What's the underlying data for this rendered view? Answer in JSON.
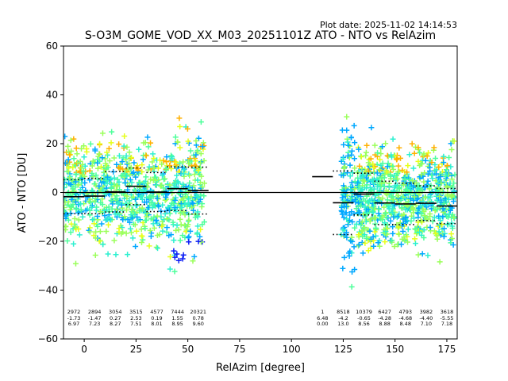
{
  "header": {
    "plot_date": "Plot date: 2025-11-02 14:14:53",
    "title": "S-O3M_GOME_VOD_XX_M03_20251101Z ATO - NTO vs RelAzim"
  },
  "chart_data": {
    "type": "scatter",
    "xlabel": "RelAzim [degree]",
    "ylabel": "ATO - NTO [DU]",
    "xlim": [
      -10,
      180
    ],
    "ylim": [
      -60,
      60
    ],
    "xticks": [
      0,
      25,
      50,
      75,
      100,
      125,
      150,
      175
    ],
    "yticks": [
      -60,
      -40,
      -20,
      0,
      20,
      40,
      60
    ],
    "xtick_labels": [
      "0",
      "25",
      "50",
      "75",
      "100",
      "125",
      "150",
      "175"
    ],
    "ytick_labels": [
      "−60",
      "−40",
      "−20",
      "0",
      "20",
      "40",
      "60"
    ],
    "marker": "+",
    "colormap": [
      "#0a1cf5",
      "#00a8ff",
      "#2df0d0",
      "#4dff9a",
      "#9aff5a",
      "#e6ff1a",
      "#ffb000"
    ],
    "reference_line_y": 0,
    "clusters": [
      {
        "x_range": [
          -10,
          58
        ],
        "y_center": 0,
        "y_spread": 24
      },
      {
        "x_range": [
          124,
          179
        ],
        "y_center": -2,
        "y_spread": 24
      }
    ],
    "bins": [
      {
        "x0": -10,
        "x1": 0,
        "mean": -1.73,
        "sd": 6.97,
        "n": "2972",
        "mean_label": "-1.73",
        "sd_label": "6.97"
      },
      {
        "x0": 0,
        "x1": 10,
        "mean": -1.47,
        "sd": 7.23,
        "n": "2894",
        "mean_label": "-1.47",
        "sd_label": "7.23"
      },
      {
        "x0": 10,
        "x1": 20,
        "mean": 0.27,
        "sd": 8.27,
        "n": "3054",
        "mean_label": "0.27",
        "sd_label": "8.27"
      },
      {
        "x0": 20,
        "x1": 30,
        "mean": 2.53,
        "sd": 7.51,
        "n": "3515",
        "mean_label": "2.53",
        "sd_label": "7.51"
      },
      {
        "x0": 30,
        "x1": 40,
        "mean": 0.19,
        "sd": 8.01,
        "n": "4577",
        "mean_label": "0.19",
        "sd_label": "8.01"
      },
      {
        "x0": 40,
        "x1": 50,
        "mean": 1.55,
        "sd": 8.95,
        "n": "7444",
        "mean_label": "1.55",
        "sd_label": "8.95"
      },
      {
        "x0": 50,
        "x1": 60,
        "mean": 0.78,
        "sd": 9.6,
        "n": "20321",
        "mean_label": "0.78",
        "sd_label": "9.60"
      },
      {
        "x0": 110,
        "x1": 120,
        "mean": 6.48,
        "sd": 0.0,
        "n": "1",
        "mean_label": "6.48",
        "sd_label": "0.00"
      },
      {
        "x0": 120,
        "x1": 130,
        "mean": -4.2,
        "sd": 13.0,
        "n": "8518",
        "mean_label": "-4.2",
        "sd_label": "13.0"
      },
      {
        "x0": 130,
        "x1": 140,
        "mean": -0.65,
        "sd": 8.56,
        "n": "10379",
        "mean_label": "-0.65",
        "sd_label": "8.56"
      },
      {
        "x0": 140,
        "x1": 150,
        "mean": -4.28,
        "sd": 8.88,
        "n": "6427",
        "mean_label": "-4.28",
        "sd_label": "8.88"
      },
      {
        "x0": 150,
        "x1": 160,
        "mean": -4.68,
        "sd": 8.48,
        "n": "4793",
        "mean_label": "-4.68",
        "sd_label": "8.48"
      },
      {
        "x0": 160,
        "x1": 170,
        "mean": -4.4,
        "sd": 7.1,
        "n": "3982",
        "mean_label": "-4.40",
        "sd_label": "7.10"
      },
      {
        "x0": 170,
        "x1": 180,
        "mean": -5.55,
        "sd": 7.18,
        "n": "3618",
        "mean_label": "-5.55",
        "sd_label": "7.18"
      }
    ]
  }
}
